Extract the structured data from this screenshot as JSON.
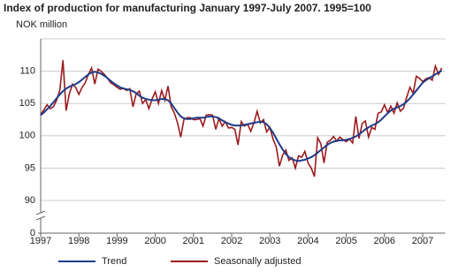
{
  "chart_data": {
    "type": "line",
    "title": "Index of production for manufacturing January 1997-July 2007. 1995=100",
    "y_label": "NOK million",
    "categories": [
      "1997",
      null,
      null,
      null,
      null,
      null,
      null,
      null,
      null,
      null,
      null,
      null,
      "1998",
      null,
      null,
      null,
      null,
      null,
      null,
      null,
      null,
      null,
      null,
      null,
      "1999",
      null,
      null,
      null,
      null,
      null,
      null,
      null,
      null,
      null,
      null,
      null,
      "2000",
      null,
      null,
      null,
      null,
      null,
      null,
      null,
      null,
      null,
      null,
      null,
      "2001",
      null,
      null,
      null,
      null,
      null,
      null,
      null,
      null,
      null,
      null,
      null,
      "2002",
      null,
      null,
      null,
      null,
      null,
      null,
      null,
      null,
      null,
      null,
      null,
      "2003",
      null,
      null,
      null,
      null,
      null,
      null,
      null,
      null,
      null,
      null,
      null,
      "2004",
      null,
      null,
      null,
      null,
      null,
      null,
      null,
      null,
      null,
      null,
      null,
      "2005",
      null,
      null,
      null,
      null,
      null,
      null,
      null,
      null,
      null,
      null,
      null,
      "2006",
      null,
      null,
      null,
      null,
      null,
      null,
      null,
      null,
      null,
      null,
      null,
      "2007",
      null,
      null,
      null,
      null,
      null,
      null
    ],
    "series": [
      {
        "name": "Trend",
        "color": "#1f3c88",
        "values": [
          103.2,
          103.6,
          104.1,
          104.6,
          105.2,
          105.8,
          106.4,
          106.9,
          107.3,
          107.6,
          107.8,
          108.0,
          108.3,
          108.7,
          109.1,
          109.5,
          109.8,
          109.9,
          109.8,
          109.6,
          109.3,
          108.9,
          108.5,
          108.1,
          107.8,
          107.5,
          107.3,
          107.2,
          107.1,
          106.9,
          106.6,
          106.2,
          105.9,
          105.7,
          105.6,
          105.5,
          105.5,
          105.6,
          105.7,
          105.7,
          105.5,
          105.0,
          104.3,
          103.6,
          103.0,
          102.7,
          102.6,
          102.6,
          102.7,
          102.8,
          102.8,
          102.8,
          102.9,
          103.0,
          103.0,
          102.9,
          102.7,
          102.4,
          102.1,
          101.9,
          101.7,
          101.6,
          101.6,
          101.6,
          101.7,
          101.8,
          101.9,
          102.0,
          102.1,
          102.2,
          102.1,
          101.8,
          101.2,
          100.5,
          99.6,
          98.7,
          97.9,
          97.2,
          96.7,
          96.4,
          96.2,
          96.1,
          96.2,
          96.3,
          96.5,
          96.7,
          97.0,
          97.4,
          97.8,
          98.2,
          98.6,
          98.9,
          99.1,
          99.2,
          99.3,
          99.3,
          99.4,
          99.5,
          99.7,
          99.9,
          100.2,
          100.6,
          101.0,
          101.3,
          101.6,
          101.8,
          102.1,
          102.5,
          103.0,
          103.5,
          103.9,
          104.2,
          104.4,
          104.6,
          104.9,
          105.3,
          105.8,
          106.4,
          107.0,
          107.6,
          108.2,
          108.6,
          108.9,
          109.2,
          109.5,
          109.8,
          110.1
        ]
      },
      {
        "name": "Seasonally adjusted",
        "color": "#9b1b1e",
        "values": [
          103.3,
          104.0,
          104.8,
          104.2,
          104.5,
          105.5,
          107.0,
          111.7,
          103.9,
          106.5,
          108.0,
          107.5,
          106.4,
          107.5,
          108.2,
          109.5,
          110.5,
          108.0,
          110.3,
          110.0,
          109.5,
          108.9,
          108.2,
          107.9,
          107.5,
          107.2,
          107.4,
          107.0,
          107.3,
          104.5,
          106.5,
          106.9,
          105.0,
          105.6,
          104.2,
          105.7,
          106.8,
          105.0,
          107.0,
          105.5,
          107.7,
          104.5,
          103.5,
          102.0,
          99.8,
          102.5,
          102.8,
          102.8,
          102.5,
          102.5,
          102.7,
          101.5,
          103.2,
          103.3,
          103.2,
          101.0,
          102.7,
          101.5,
          102.2,
          101.2,
          101.3,
          101.0,
          98.6,
          102.2,
          101.5,
          101.8,
          100.7,
          102.0,
          103.8,
          102.0,
          102.5,
          100.6,
          101.3,
          99.5,
          98.3,
          95.3,
          97.0,
          97.8,
          96.2,
          96.6,
          95.0,
          96.9,
          96.7,
          97.6,
          95.8,
          95.0,
          93.7,
          99.7,
          98.8,
          95.8,
          99.0,
          99.3,
          99.9,
          99.2,
          99.8,
          99.4,
          99.1,
          99.5,
          98.9,
          103.0,
          99.6,
          101.9,
          102.3,
          99.8,
          101.3,
          101.0,
          103.5,
          103.7,
          104.8,
          103.6,
          104.6,
          103.5,
          105.1,
          103.8,
          104.3,
          106.0,
          107.5,
          106.6,
          109.2,
          108.9,
          108.4,
          108.8,
          109.0,
          108.6,
          110.8,
          109.5,
          110.5
        ]
      }
    ],
    "ylim": [
      0,
      115
    ],
    "yticks": [
      0,
      90,
      95,
      100,
      105,
      110
    ],
    "axis_break": true,
    "grid": true,
    "legend": "bottom"
  }
}
